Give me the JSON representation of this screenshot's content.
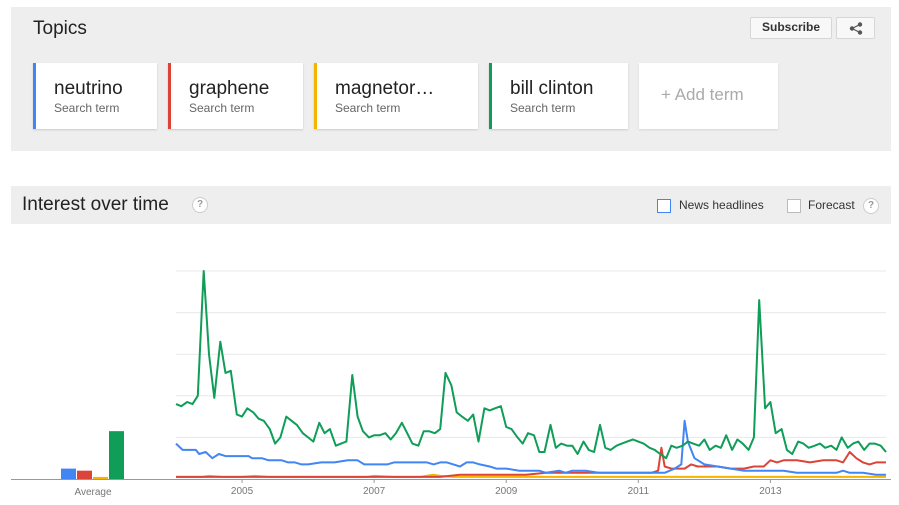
{
  "topics": {
    "title": "Topics",
    "subscribe_label": "Subscribe",
    "terms": [
      {
        "name": "neutrino",
        "sub": "Search term",
        "color": "#4285f4"
      },
      {
        "name": "graphene",
        "sub": "Search term",
        "color": "#db4437"
      },
      {
        "name": "magnetor…",
        "sub": "Search term",
        "color": "#f4b400"
      },
      {
        "name": "bill clinton",
        "sub": "Search term",
        "color": "#0f9d58"
      }
    ],
    "add_term_label": "+ Add term"
  },
  "interest": {
    "title": "Interest over time",
    "help": "?",
    "news_headlines_label": "News headlines",
    "forecast_label": "Forecast"
  },
  "chart_data": {
    "type": "line",
    "title": "Interest over time",
    "xlabel": "",
    "ylabel": "",
    "ylim": [
      0,
      100
    ],
    "xlim": [
      2004.0,
      2014.75
    ],
    "x_ticks": [
      "2005",
      "2007",
      "2009",
      "2011",
      "2013"
    ],
    "x_tick_values": [
      2005,
      2007,
      2009,
      2011,
      2013
    ],
    "grid": true,
    "legend": "none",
    "average_label": "Average",
    "averages": [
      {
        "name": "neutrino",
        "value": 5
      },
      {
        "name": "graphene",
        "value": 4
      },
      {
        "name": "magnetor…",
        "value": 1
      },
      {
        "name": "bill clinton",
        "value": 23
      }
    ],
    "series": [
      {
        "name": "neutrino",
        "color": "#4285f4",
        "points": [
          [
            2004.0,
            17
          ],
          [
            2004.1,
            14
          ],
          [
            2004.3,
            14
          ],
          [
            2004.35,
            12
          ],
          [
            2004.45,
            13
          ],
          [
            2004.55,
            10
          ],
          [
            2004.65,
            12
          ],
          [
            2004.75,
            11
          ],
          [
            2004.9,
            11
          ],
          [
            2005.1,
            11
          ],
          [
            2005.15,
            10
          ],
          [
            2005.3,
            10
          ],
          [
            2005.4,
            9
          ],
          [
            2005.6,
            9
          ],
          [
            2005.7,
            8
          ],
          [
            2005.8,
            8
          ],
          [
            2005.9,
            7
          ],
          [
            2006.0,
            7
          ],
          [
            2006.2,
            8
          ],
          [
            2006.4,
            8
          ],
          [
            2006.6,
            9
          ],
          [
            2006.75,
            9
          ],
          [
            2006.85,
            7
          ],
          [
            2007.0,
            7
          ],
          [
            2007.2,
            7
          ],
          [
            2007.3,
            8
          ],
          [
            2007.6,
            8
          ],
          [
            2007.8,
            8
          ],
          [
            2007.9,
            7
          ],
          [
            2008.0,
            8
          ],
          [
            2008.1,
            8
          ],
          [
            2008.2,
            7
          ],
          [
            2008.3,
            6
          ],
          [
            2008.4,
            8
          ],
          [
            2008.5,
            8
          ],
          [
            2008.6,
            7
          ],
          [
            2008.75,
            6
          ],
          [
            2008.85,
            5
          ],
          [
            2009.0,
            5
          ],
          [
            2009.2,
            4
          ],
          [
            2009.4,
            4
          ],
          [
            2009.5,
            4
          ],
          [
            2009.6,
            3
          ],
          [
            2009.8,
            4
          ],
          [
            2009.9,
            3
          ],
          [
            2010.0,
            4
          ],
          [
            2010.2,
            4
          ],
          [
            2010.4,
            3
          ],
          [
            2010.6,
            3
          ],
          [
            2010.8,
            3
          ],
          [
            2011.0,
            3
          ],
          [
            2011.2,
            3
          ],
          [
            2011.4,
            3
          ],
          [
            2011.55,
            5
          ],
          [
            2011.65,
            7
          ],
          [
            2011.7,
            28
          ],
          [
            2011.75,
            18
          ],
          [
            2011.85,
            10
          ],
          [
            2012.0,
            7
          ],
          [
            2012.2,
            6
          ],
          [
            2012.4,
            5
          ],
          [
            2012.6,
            4
          ],
          [
            2012.8,
            4
          ],
          [
            2013.0,
            4
          ],
          [
            2013.2,
            4
          ],
          [
            2013.4,
            3
          ],
          [
            2013.6,
            3
          ],
          [
            2013.8,
            3
          ],
          [
            2014.0,
            3
          ],
          [
            2014.1,
            4
          ],
          [
            2014.2,
            3
          ],
          [
            2014.4,
            3
          ],
          [
            2014.6,
            2
          ],
          [
            2014.75,
            2
          ]
        ]
      },
      {
        "name": "graphene",
        "color": "#db4437",
        "points": [
          [
            2004.0,
            1
          ],
          [
            2004.5,
            1
          ],
          [
            2005.0,
            1
          ],
          [
            2005.5,
            1
          ],
          [
            2006.0,
            1
          ],
          [
            2006.5,
            1
          ],
          [
            2007.0,
            1
          ],
          [
            2007.5,
            1
          ],
          [
            2008.0,
            1
          ],
          [
            2008.3,
            2
          ],
          [
            2008.6,
            2
          ],
          [
            2009.0,
            2
          ],
          [
            2009.3,
            2
          ],
          [
            2009.6,
            3
          ],
          [
            2010.0,
            3
          ],
          [
            2010.3,
            3
          ],
          [
            2010.6,
            3
          ],
          [
            2010.9,
            3
          ],
          [
            2011.0,
            3
          ],
          [
            2011.2,
            3
          ],
          [
            2011.3,
            4
          ],
          [
            2011.35,
            15
          ],
          [
            2011.4,
            6
          ],
          [
            2011.5,
            5
          ],
          [
            2011.7,
            5
          ],
          [
            2011.8,
            7
          ],
          [
            2011.9,
            6
          ],
          [
            2012.0,
            6
          ],
          [
            2012.2,
            6
          ],
          [
            2012.4,
            5
          ],
          [
            2012.6,
            5
          ],
          [
            2012.75,
            6
          ],
          [
            2012.9,
            6
          ],
          [
            2013.0,
            9
          ],
          [
            2013.1,
            8
          ],
          [
            2013.2,
            9
          ],
          [
            2013.4,
            9
          ],
          [
            2013.6,
            8
          ],
          [
            2013.8,
            9
          ],
          [
            2014.0,
            9
          ],
          [
            2014.1,
            8
          ],
          [
            2014.2,
            13
          ],
          [
            2014.3,
            10
          ],
          [
            2014.4,
            8
          ],
          [
            2014.5,
            7
          ],
          [
            2014.6,
            8
          ],
          [
            2014.75,
            8
          ]
        ]
      },
      {
        "name": "magnetor…",
        "color": "#f4b400",
        "points": [
          [
            2004.0,
            1
          ],
          [
            2004.4,
            1
          ],
          [
            2004.5,
            1.5
          ],
          [
            2004.7,
            1
          ],
          [
            2005.0,
            1
          ],
          [
            2005.2,
            1.5
          ],
          [
            2005.4,
            1
          ],
          [
            2005.8,
            1
          ],
          [
            2006.0,
            1
          ],
          [
            2006.3,
            1
          ],
          [
            2006.6,
            1
          ],
          [
            2006.9,
            1
          ],
          [
            2007.0,
            1.5
          ],
          [
            2007.3,
            1
          ],
          [
            2007.7,
            1
          ],
          [
            2007.9,
            2
          ],
          [
            2008.0,
            1.5
          ],
          [
            2008.2,
            1
          ],
          [
            2008.5,
            1
          ],
          [
            2009.0,
            1
          ],
          [
            2009.5,
            1
          ],
          [
            2010.0,
            1
          ],
          [
            2010.5,
            1
          ],
          [
            2011.0,
            1
          ],
          [
            2011.5,
            1
          ],
          [
            2012.0,
            1
          ],
          [
            2012.5,
            1
          ],
          [
            2013.0,
            1
          ],
          [
            2013.5,
            1
          ],
          [
            2014.0,
            1
          ],
          [
            2014.5,
            1
          ],
          [
            2014.75,
            1
          ]
        ]
      },
      {
        "name": "bill clinton",
        "color": "#0f9d58",
        "points": [
          [
            2004.0,
            36
          ],
          [
            2004.08,
            35
          ],
          [
            2004.17,
            37
          ],
          [
            2004.25,
            36
          ],
          [
            2004.33,
            40
          ],
          [
            2004.42,
            100
          ],
          [
            2004.5,
            60
          ],
          [
            2004.58,
            39
          ],
          [
            2004.67,
            66
          ],
          [
            2004.75,
            51
          ],
          [
            2004.83,
            52
          ],
          [
            2004.92,
            31
          ],
          [
            2005.0,
            30
          ],
          [
            2005.08,
            34
          ],
          [
            2005.17,
            32
          ],
          [
            2005.25,
            29
          ],
          [
            2005.33,
            28
          ],
          [
            2005.42,
            24
          ],
          [
            2005.5,
            17
          ],
          [
            2005.58,
            20
          ],
          [
            2005.67,
            30
          ],
          [
            2005.75,
            28
          ],
          [
            2005.83,
            26
          ],
          [
            2005.92,
            22
          ],
          [
            2006.0,
            20
          ],
          [
            2006.08,
            18
          ],
          [
            2006.17,
            27
          ],
          [
            2006.25,
            22
          ],
          [
            2006.33,
            24
          ],
          [
            2006.42,
            16
          ],
          [
            2006.5,
            17
          ],
          [
            2006.58,
            18
          ],
          [
            2006.67,
            50
          ],
          [
            2006.75,
            30
          ],
          [
            2006.83,
            23
          ],
          [
            2006.92,
            20
          ],
          [
            2007.0,
            21
          ],
          [
            2007.08,
            21
          ],
          [
            2007.17,
            22
          ],
          [
            2007.25,
            19
          ],
          [
            2007.33,
            22
          ],
          [
            2007.42,
            27
          ],
          [
            2007.5,
            22
          ],
          [
            2007.58,
            17
          ],
          [
            2007.67,
            16
          ],
          [
            2007.75,
            23
          ],
          [
            2007.83,
            23
          ],
          [
            2007.92,
            22
          ],
          [
            2008.0,
            24
          ],
          [
            2008.08,
            51
          ],
          [
            2008.17,
            45
          ],
          [
            2008.25,
            32
          ],
          [
            2008.33,
            30
          ],
          [
            2008.42,
            28
          ],
          [
            2008.5,
            31
          ],
          [
            2008.58,
            18
          ],
          [
            2008.67,
            34
          ],
          [
            2008.75,
            33
          ],
          [
            2008.83,
            34
          ],
          [
            2008.92,
            35
          ],
          [
            2009.0,
            25
          ],
          [
            2009.08,
            24
          ],
          [
            2009.17,
            20
          ],
          [
            2009.25,
            17
          ],
          [
            2009.33,
            22
          ],
          [
            2009.42,
            21
          ],
          [
            2009.5,
            13
          ],
          [
            2009.58,
            13
          ],
          [
            2009.67,
            26
          ],
          [
            2009.75,
            15
          ],
          [
            2009.83,
            17
          ],
          [
            2009.92,
            16
          ],
          [
            2010.0,
            16
          ],
          [
            2010.08,
            12
          ],
          [
            2010.17,
            18
          ],
          [
            2010.25,
            14
          ],
          [
            2010.33,
            13
          ],
          [
            2010.42,
            26
          ],
          [
            2010.5,
            15
          ],
          [
            2010.58,
            14
          ],
          [
            2010.67,
            16
          ],
          [
            2010.75,
            17
          ],
          [
            2010.83,
            18
          ],
          [
            2010.92,
            19
          ],
          [
            2011.0,
            18
          ],
          [
            2011.08,
            17
          ],
          [
            2011.17,
            15
          ],
          [
            2011.25,
            14
          ],
          [
            2011.33,
            12
          ],
          [
            2011.42,
            10
          ],
          [
            2011.5,
            16
          ],
          [
            2011.58,
            15
          ],
          [
            2011.67,
            16
          ],
          [
            2011.75,
            18
          ],
          [
            2011.83,
            17
          ],
          [
            2011.92,
            16
          ],
          [
            2012.0,
            19
          ],
          [
            2012.08,
            14
          ],
          [
            2012.17,
            16
          ],
          [
            2012.25,
            15
          ],
          [
            2012.33,
            21
          ],
          [
            2012.42,
            14
          ],
          [
            2012.5,
            19
          ],
          [
            2012.58,
            17
          ],
          [
            2012.67,
            14
          ],
          [
            2012.75,
            20
          ],
          [
            2012.83,
            86
          ],
          [
            2012.92,
            34
          ],
          [
            2013.0,
            37
          ],
          [
            2013.08,
            22
          ],
          [
            2013.17,
            24
          ],
          [
            2013.25,
            14
          ],
          [
            2013.33,
            12
          ],
          [
            2013.42,
            18
          ],
          [
            2013.5,
            17
          ],
          [
            2013.58,
            15
          ],
          [
            2013.67,
            16
          ],
          [
            2013.75,
            17
          ],
          [
            2013.83,
            15
          ],
          [
            2013.92,
            16
          ],
          [
            2014.0,
            14
          ],
          [
            2014.08,
            20
          ],
          [
            2014.17,
            15
          ],
          [
            2014.25,
            17
          ],
          [
            2014.33,
            18
          ],
          [
            2014.42,
            14
          ],
          [
            2014.5,
            17
          ],
          [
            2014.58,
            17
          ],
          [
            2014.67,
            16
          ],
          [
            2014.75,
            13
          ]
        ]
      }
    ]
  }
}
